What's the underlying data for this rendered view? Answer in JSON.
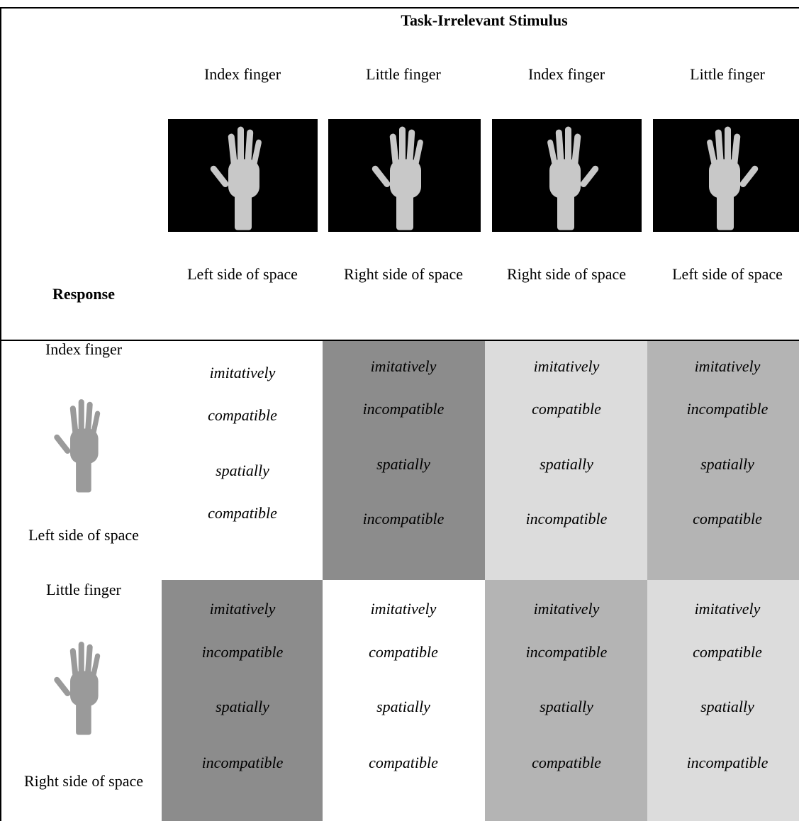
{
  "header": {
    "title": "Task-Irrelevant Stimulus",
    "response": "Response",
    "columns": [
      {
        "finger": "Index finger",
        "side": "Left side of space"
      },
      {
        "finger": "Little finger",
        "side": "Right side of space"
      },
      {
        "finger": "Index finger",
        "side": "Right side of space"
      },
      {
        "finger": "Little finger",
        "side": "Left side of space"
      }
    ]
  },
  "rows": [
    {
      "finger": "Index finger",
      "side": "Left side of space",
      "cells": [
        [
          "imitatively",
          "compatible",
          "spatially",
          "compatible"
        ],
        [
          "imitatively",
          "incompatible",
          "spatially",
          "incompatible"
        ],
        [
          "imitatively",
          "compatible",
          "spatially",
          "incompatible"
        ],
        [
          "imitatively",
          "incompatible",
          "spatially",
          "compatible"
        ]
      ]
    },
    {
      "finger": "Little finger",
      "side": "Right side of space",
      "cells": [
        [
          "imitatively",
          "incompatible",
          "spatially",
          "incompatible"
        ],
        [
          "imitatively",
          "compatible",
          "spatially",
          "compatible"
        ],
        [
          "imitatively",
          "incompatible",
          "spatially",
          "compatible"
        ],
        [
          "imitatively",
          "compatible",
          "spatially",
          "incompatible"
        ]
      ]
    }
  ]
}
